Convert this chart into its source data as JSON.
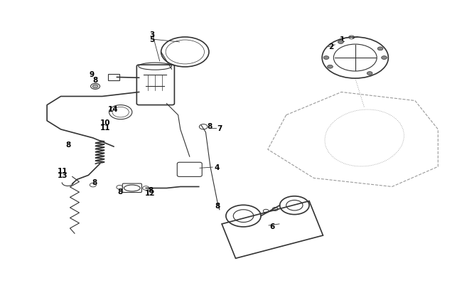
{
  "bg_color": "#ffffff",
  "line_color": "#333333",
  "label_color": "#000000",
  "figsize": [
    6.5,
    4.06
  ],
  "dpi": 100
}
